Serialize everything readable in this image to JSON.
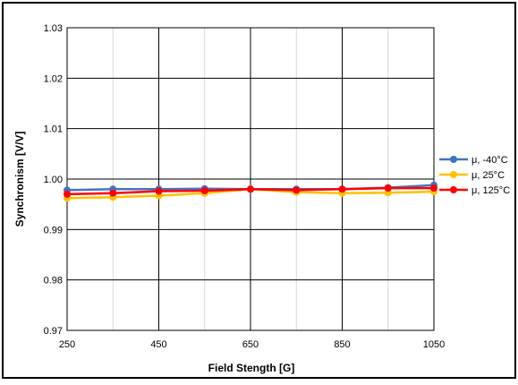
{
  "chart_data": {
    "type": "line",
    "title": "",
    "xlabel": "Field Stength [G]",
    "ylabel": "Synchronism [V/V]",
    "x": [
      250,
      350,
      450,
      550,
      650,
      750,
      850,
      950,
      1050
    ],
    "xlim": [
      250,
      1050
    ],
    "ylim": [
      0.97,
      1.03
    ],
    "x_ticks": [
      250,
      450,
      650,
      850,
      1050
    ],
    "y_ticks": [
      0.97,
      0.98,
      0.99,
      1.0,
      1.01,
      1.02,
      1.03
    ],
    "x_tick_labels": [
      "250",
      "450",
      "650",
      "850",
      "1050"
    ],
    "y_tick_labels": [
      "0.97",
      "0.98",
      "0.99",
      "1.00",
      "1.01",
      "1.02",
      "1.03"
    ],
    "grid": true,
    "legend_position": "right",
    "series": [
      {
        "name": "μ, -40°C",
        "color": "#4472C4",
        "values": [
          0.9978,
          0.998,
          0.998,
          0.9981,
          0.998,
          0.998,
          0.998,
          0.9983,
          0.9988
        ]
      },
      {
        "name": "μ, 25°C",
        "color": "#FFC000",
        "values": [
          0.9962,
          0.9964,
          0.9967,
          0.9972,
          0.998,
          0.9974,
          0.9972,
          0.9973,
          0.9975
        ]
      },
      {
        "name": "μ, 125°C",
        "color": "#FF0000",
        "values": [
          0.997,
          0.9972,
          0.9976,
          0.9977,
          0.998,
          0.9978,
          0.998,
          0.9982,
          0.9982
        ]
      }
    ]
  }
}
